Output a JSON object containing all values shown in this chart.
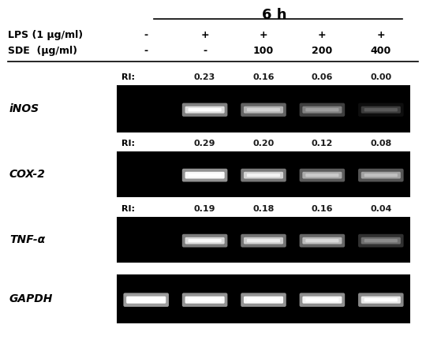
{
  "title": "6 h",
  "lps_label": "LPS (1 μg/ml)",
  "sde_label": "SDE  (μg/ml)",
  "lps_values": [
    "-",
    "+",
    "+",
    "+",
    "+"
  ],
  "sde_values": [
    "-",
    "-",
    "100",
    "200",
    "400"
  ],
  "genes": [
    "iNOS",
    "COX-2",
    "TNF-α",
    "GAPDH"
  ],
  "ri_values": {
    "iNOS": [
      null,
      0.23,
      0.16,
      0.06,
      0.0
    ],
    "COX-2": [
      null,
      0.29,
      0.2,
      0.12,
      0.08
    ],
    "TNF-α": [
      null,
      0.19,
      0.18,
      0.16,
      0.04
    ],
    "GAPDH": [
      null,
      null,
      null,
      null,
      null
    ]
  },
  "band_intensities": {
    "iNOS": [
      0.0,
      0.72,
      0.55,
      0.35,
      0.08
    ],
    "COX-2": [
      0.0,
      0.82,
      0.68,
      0.52,
      0.48
    ],
    "TNF-α": [
      0.0,
      0.7,
      0.65,
      0.58,
      0.28
    ],
    "GAPDH": [
      0.88,
      0.82,
      0.82,
      0.8,
      0.76
    ]
  },
  "figure_bg": "#ffffff"
}
